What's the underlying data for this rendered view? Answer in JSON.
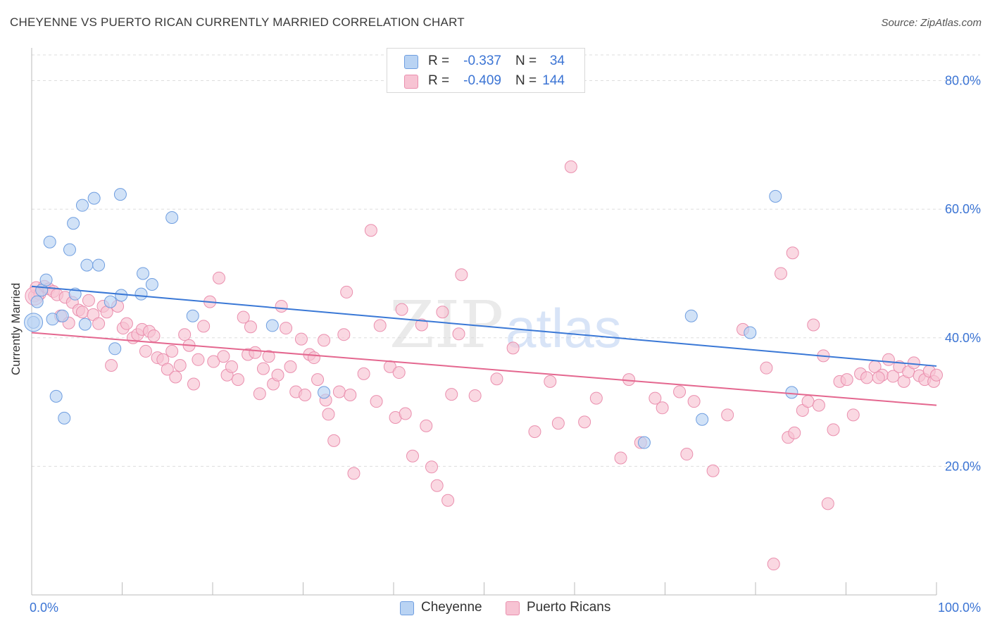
{
  "header": {
    "title": "CHEYENNE VS PUERTO RICAN CURRENTLY MARRIED CORRELATION CHART",
    "source": "Source: ZipAtlas.com"
  },
  "legend": {
    "r_label": "R =",
    "n_label": "N =",
    "cheyenne": {
      "r": "-0.337",
      "n": "34"
    },
    "puerto": {
      "r": "-0.409",
      "n": "144"
    }
  },
  "bottom_legend": {
    "cheyenne": "Cheyenne",
    "puerto": "Puerto Ricans"
  },
  "watermark": {
    "zip": "ZIP",
    "atlas": "atlas"
  },
  "colors": {
    "cheyenne_fill": "#b9d3f3",
    "cheyenne_stroke": "#6f9ee0",
    "cheyenne_line": "#3a78d6",
    "puerto_fill": "#f7c3d3",
    "puerto_stroke": "#ea8fae",
    "puerto_line": "#e4678f",
    "axis_label": "#3b74d4",
    "grid": "#dddddd"
  },
  "chart_data": {
    "type": "scatter",
    "title": "CHEYENNE VS PUERTO RICAN CURRENTLY MARRIED CORRELATION CHART",
    "xlabel": "",
    "ylabel": "Currently Married",
    "xlim": [
      0,
      100
    ],
    "ylim": [
      0,
      84
    ],
    "x_tick_labels": [
      "0.0%",
      "100.0%"
    ],
    "y_ticks": [
      20,
      40,
      60,
      80
    ],
    "y_tick_labels": [
      "20.0%",
      "40.0%",
      "60.0%",
      "80.0%"
    ],
    "grid": true,
    "legend_position": "top-center",
    "series": [
      {
        "name": "Cheyenne",
        "r": -0.337,
        "n": 34,
        "trend": {
          "x": [
            0,
            100
          ],
          "y": [
            48.0,
            35.6
          ]
        },
        "points": [
          [
            0.2,
            42.4
          ],
          [
            0.6,
            45.6
          ],
          [
            1.1,
            47.4
          ],
          [
            1.6,
            49.0
          ],
          [
            2.0,
            54.9
          ],
          [
            2.3,
            42.9
          ],
          [
            2.7,
            30.9
          ],
          [
            3.4,
            43.4
          ],
          [
            3.6,
            27.5
          ],
          [
            4.2,
            53.7
          ],
          [
            4.6,
            57.8
          ],
          [
            4.8,
            46.8
          ],
          [
            5.6,
            60.6
          ],
          [
            5.9,
            42.1
          ],
          [
            6.1,
            51.3
          ],
          [
            6.9,
            61.7
          ],
          [
            7.4,
            51.3
          ],
          [
            8.7,
            45.6
          ],
          [
            9.2,
            38.3
          ],
          [
            9.8,
            62.3
          ],
          [
            9.9,
            46.6
          ],
          [
            12.1,
            46.8
          ],
          [
            12.3,
            50.0
          ],
          [
            13.3,
            48.3
          ],
          [
            15.5,
            58.7
          ],
          [
            17.8,
            43.4
          ],
          [
            26.6,
            41.9
          ],
          [
            32.3,
            31.5
          ],
          [
            67.7,
            23.7
          ],
          [
            72.9,
            43.4
          ],
          [
            74.1,
            27.3
          ],
          [
            79.4,
            40.8
          ],
          [
            82.2,
            62.0
          ],
          [
            84.0,
            31.5
          ]
        ]
      },
      {
        "name": "Puerto Ricans",
        "r": -0.409,
        "n": 144,
        "trend": {
          "x": [
            0,
            100
          ],
          "y": [
            40.8,
            29.5
          ]
        },
        "points": [
          [
            0.3,
            46.5
          ],
          [
            0.5,
            47.8
          ],
          [
            0.9,
            46.8
          ],
          [
            1.4,
            48.0
          ],
          [
            1.9,
            47.6
          ],
          [
            2.4,
            47.2
          ],
          [
            2.8,
            46.7
          ],
          [
            3.2,
            43.4
          ],
          [
            3.7,
            46.3
          ],
          [
            4.1,
            42.3
          ],
          [
            4.5,
            45.5
          ],
          [
            5.2,
            44.3
          ],
          [
            5.6,
            44.0
          ],
          [
            6.3,
            45.8
          ],
          [
            6.8,
            43.6
          ],
          [
            7.4,
            42.2
          ],
          [
            7.9,
            44.9
          ],
          [
            8.3,
            44.0
          ],
          [
            8.8,
            35.7
          ],
          [
            9.5,
            44.9
          ],
          [
            10.1,
            41.5
          ],
          [
            10.5,
            42.2
          ],
          [
            11.2,
            40.0
          ],
          [
            11.7,
            40.5
          ],
          [
            12.2,
            41.3
          ],
          [
            12.6,
            37.9
          ],
          [
            13.0,
            41.0
          ],
          [
            13.5,
            40.3
          ],
          [
            13.9,
            36.9
          ],
          [
            14.5,
            36.6
          ],
          [
            15.0,
            35.1
          ],
          [
            15.5,
            37.9
          ],
          [
            15.9,
            33.9
          ],
          [
            16.4,
            35.7
          ],
          [
            16.9,
            40.5
          ],
          [
            17.4,
            38.8
          ],
          [
            17.9,
            32.8
          ],
          [
            18.4,
            36.6
          ],
          [
            19.0,
            41.8
          ],
          [
            19.7,
            45.6
          ],
          [
            20.1,
            36.3
          ],
          [
            20.7,
            49.3
          ],
          [
            21.2,
            37.1
          ],
          [
            21.6,
            34.2
          ],
          [
            22.1,
            35.5
          ],
          [
            22.8,
            33.5
          ],
          [
            23.4,
            43.2
          ],
          [
            23.9,
            37.4
          ],
          [
            24.2,
            41.7
          ],
          [
            24.7,
            37.7
          ],
          [
            25.2,
            31.3
          ],
          [
            25.6,
            35.2
          ],
          [
            26.2,
            37.1
          ],
          [
            26.7,
            32.8
          ],
          [
            27.2,
            34.2
          ],
          [
            27.6,
            44.9
          ],
          [
            28.1,
            41.5
          ],
          [
            28.6,
            35.5
          ],
          [
            29.2,
            31.6
          ],
          [
            29.8,
            39.8
          ],
          [
            30.2,
            31.1
          ],
          [
            30.7,
            37.4
          ],
          [
            31.2,
            36.9
          ],
          [
            31.6,
            33.5
          ],
          [
            32.3,
            39.6
          ],
          [
            32.5,
            30.3
          ],
          [
            32.8,
            28.1
          ],
          [
            33.4,
            24.0
          ],
          [
            34.0,
            31.6
          ],
          [
            34.5,
            40.5
          ],
          [
            34.8,
            47.1
          ],
          [
            35.2,
            31.1
          ],
          [
            35.6,
            18.9
          ],
          [
            36.7,
            34.4
          ],
          [
            37.5,
            56.7
          ],
          [
            38.1,
            30.1
          ],
          [
            38.5,
            41.9
          ],
          [
            39.6,
            35.5
          ],
          [
            40.2,
            27.6
          ],
          [
            40.6,
            34.6
          ],
          [
            40.9,
            44.4
          ],
          [
            41.3,
            28.2
          ],
          [
            42.1,
            21.6
          ],
          [
            43.1,
            42.0
          ],
          [
            43.6,
            26.3
          ],
          [
            44.2,
            19.9
          ],
          [
            44.8,
            17.0
          ],
          [
            45.4,
            44.0
          ],
          [
            46.0,
            14.7
          ],
          [
            46.4,
            31.2
          ],
          [
            47.2,
            40.6
          ],
          [
            47.5,
            49.8
          ],
          [
            49.0,
            31.0
          ],
          [
            51.4,
            33.6
          ],
          [
            53.2,
            38.4
          ],
          [
            55.6,
            25.4
          ],
          [
            57.3,
            33.2
          ],
          [
            58.2,
            26.7
          ],
          [
            59.6,
            66.6
          ],
          [
            61.1,
            26.9
          ],
          [
            62.4,
            30.6
          ],
          [
            65.1,
            21.3
          ],
          [
            66.0,
            33.5
          ],
          [
            67.3,
            23.7
          ],
          [
            68.9,
            30.6
          ],
          [
            69.7,
            29.1
          ],
          [
            71.6,
            31.6
          ],
          [
            72.4,
            21.9
          ],
          [
            73.2,
            30.1
          ],
          [
            75.3,
            19.3
          ],
          [
            76.9,
            28.0
          ],
          [
            78.6,
            41.3
          ],
          [
            81.2,
            35.3
          ],
          [
            82.0,
            4.8
          ],
          [
            82.8,
            50.0
          ],
          [
            83.6,
            24.5
          ],
          [
            84.1,
            53.2
          ],
          [
            84.3,
            25.2
          ],
          [
            85.2,
            28.7
          ],
          [
            85.8,
            30.1
          ],
          [
            86.4,
            42.0
          ],
          [
            87.0,
            29.5
          ],
          [
            87.5,
            37.2
          ],
          [
            88.0,
            14.2
          ],
          [
            88.6,
            25.7
          ],
          [
            89.3,
            33.2
          ],
          [
            90.1,
            33.5
          ],
          [
            90.8,
            28.0
          ],
          [
            91.6,
            34.4
          ],
          [
            92.3,
            33.8
          ],
          [
            93.2,
            35.5
          ],
          [
            94.0,
            34.2
          ],
          [
            94.7,
            36.6
          ],
          [
            95.2,
            34.0
          ],
          [
            95.9,
            35.5
          ],
          [
            96.4,
            33.2
          ],
          [
            96.9,
            34.7
          ],
          [
            97.5,
            36.1
          ],
          [
            98.1,
            34.1
          ],
          [
            98.7,
            33.5
          ],
          [
            99.2,
            34.8
          ],
          [
            99.7,
            33.2
          ],
          [
            100.0,
            34.2
          ],
          [
            93.6,
            33.8
          ]
        ]
      }
    ]
  }
}
